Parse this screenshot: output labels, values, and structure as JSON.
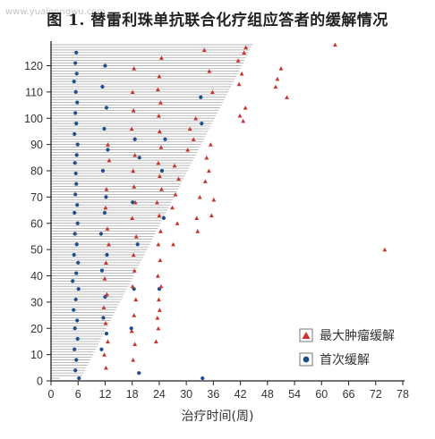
{
  "watermark": "www.yuaigongwu.com",
  "title": "图 1. 替雷利珠单抗联合化疗组应答者的缓解情况",
  "chart_data": {
    "type": "swimmer",
    "title": "图 1. 替雷利珠单抗联合化疗组应答者的缓解情况",
    "xlabel": "治疗时间(周)",
    "ylabel": "",
    "xlim": [
      0,
      78
    ],
    "ylim": [
      0,
      128
    ],
    "xticks": [
      0,
      6,
      12,
      18,
      24,
      30,
      36,
      42,
      48,
      54,
      60,
      66,
      72,
      78
    ],
    "yticks": [
      0,
      10,
      20,
      30,
      40,
      50,
      60,
      70,
      80,
      90,
      100,
      110,
      120
    ],
    "bar_color": "#b3b3b3",
    "legend": [
      {
        "name": "最大肿瘤缓解",
        "marker": "triangle",
        "color": "#c8332b"
      },
      {
        "name": "首次缓解",
        "marker": "circle",
        "color": "#1b4f8c"
      }
    ],
    "legend_position": "bottom-right",
    "durations": [
      2,
      6.9,
      7.2,
      7.5,
      7.8,
      8.1,
      8.4,
      8.7,
      9.0,
      9.3,
      9.6,
      9.9,
      10.2,
      10.5,
      10.8,
      11.1,
      11.4,
      11.7,
      12.0,
      12.3,
      12.6,
      12.9,
      13.2,
      13.5,
      13.8,
      14.1,
      14.4,
      14.7,
      15.0,
      15.3,
      15.6,
      15.9,
      16.2,
      16.5,
      16.8,
      17.1,
      17.4,
      17.7,
      18.0,
      18.3,
      18.6,
      18.9,
      19.2,
      19.5,
      19.8,
      20.1,
      20.4,
      20.7,
      21.0,
      21.3,
      21.6,
      21.9,
      22.2,
      22.5,
      22.8,
      23.1,
      23.4,
      23.7,
      24.0,
      24.3,
      24.6,
      24.9,
      25.2,
      25.5,
      25.8,
      26.1,
      26.4,
      26.7,
      27.0,
      27.3,
      27.6,
      27.9,
      28.2,
      28.5,
      28.8,
      29.1,
      29.4,
      29.7,
      30.0,
      30.3,
      30.6,
      30.9,
      31.2,
      31.5,
      31.8,
      32.1,
      32.4,
      32.7,
      33.0,
      33.3,
      33.6,
      33.9,
      34.2,
      34.5,
      34.8,
      35.1,
      35.4,
      35.7,
      36.0,
      36.3,
      36.6,
      36.9,
      37.2,
      37.5,
      37.8,
      38.1,
      38.4,
      38.7,
      39.0,
      39.3,
      39.6,
      39.9,
      40.2,
      40.5,
      40.8,
      41.1,
      41.4,
      41.7,
      42.0,
      42.3,
      42.6,
      42.9,
      43.2,
      43.5,
      43.8,
      44.1,
      44.4,
      44.7
    ],
    "first_response": [
      [
        6.2,
        1
      ],
      [
        19.5,
        3
      ],
      [
        33.6,
        1
      ],
      [
        5.4,
        4
      ],
      [
        5.6,
        8
      ],
      [
        5.2,
        12
      ],
      [
        5.9,
        16
      ],
      [
        5.3,
        20
      ],
      [
        5.8,
        23
      ],
      [
        5.0,
        27
      ],
      [
        5.5,
        31
      ],
      [
        6.1,
        35
      ],
      [
        4.8,
        38
      ],
      [
        5.6,
        41
      ],
      [
        6.0,
        45
      ],
      [
        5.1,
        48
      ],
      [
        5.7,
        52
      ],
      [
        5.3,
        56
      ],
      [
        5.9,
        60
      ],
      [
        5.2,
        64
      ],
      [
        5.8,
        67
      ],
      [
        5.4,
        71
      ],
      [
        5.6,
        75
      ],
      [
        5.5,
        79
      ],
      [
        5.3,
        83
      ],
      [
        5.7,
        86
      ],
      [
        5.9,
        90
      ],
      [
        5.2,
        94
      ],
      [
        5.6,
        98
      ],
      [
        5.4,
        102
      ],
      [
        5.8,
        106
      ],
      [
        5.5,
        110
      ],
      [
        5.1,
        114
      ],
      [
        5.7,
        117
      ],
      [
        5.4,
        121
      ],
      [
        5.6,
        125
      ],
      [
        11.2,
        12
      ],
      [
        12.3,
        18
      ],
      [
        11.6,
        24
      ],
      [
        12.0,
        32
      ],
      [
        11.3,
        42
      ],
      [
        12.4,
        48
      ],
      [
        11.1,
        56
      ],
      [
        11.9,
        64
      ],
      [
        12.2,
        70
      ],
      [
        11.5,
        80
      ],
      [
        12.6,
        88
      ],
      [
        11.8,
        96
      ],
      [
        12.3,
        104
      ],
      [
        11.4,
        112
      ],
      [
        12.0,
        120
      ],
      [
        17.8,
        20
      ],
      [
        18.4,
        35
      ],
      [
        19.2,
        52
      ],
      [
        18.1,
        68
      ],
      [
        19.6,
        85
      ],
      [
        18.6,
        92
      ],
      [
        24.0,
        35
      ],
      [
        25.0,
        62
      ],
      [
        24.6,
        80
      ],
      [
        25.3,
        92
      ],
      [
        33.4,
        98
      ],
      [
        33.2,
        108
      ]
    ],
    "max_response": [
      [
        12.2,
        5
      ],
      [
        11.8,
        10
      ],
      [
        12.6,
        15
      ],
      [
        12.1,
        22
      ],
      [
        11.7,
        28
      ],
      [
        12.4,
        33
      ],
      [
        11.9,
        39
      ],
      [
        12.2,
        45
      ],
      [
        12.8,
        52
      ],
      [
        12.5,
        58
      ],
      [
        12.1,
        66
      ],
      [
        12.3,
        73
      ],
      [
        12.9,
        84
      ],
      [
        12.6,
        90
      ],
      [
        18.2,
        8
      ],
      [
        18.6,
        14
      ],
      [
        17.9,
        19
      ],
      [
        18.4,
        25
      ],
      [
        18.8,
        31
      ],
      [
        18.1,
        36
      ],
      [
        18.5,
        42
      ],
      [
        18.3,
        48
      ],
      [
        18.9,
        55
      ],
      [
        18.0,
        62
      ],
      [
        18.7,
        68
      ],
      [
        18.4,
        74
      ],
      [
        18.2,
        80
      ],
      [
        18.6,
        86
      ],
      [
        17.9,
        96
      ],
      [
        18.3,
        103
      ],
      [
        18.1,
        110
      ],
      [
        18.4,
        119
      ],
      [
        23.3,
        15
      ],
      [
        23.8,
        20
      ],
      [
        23.6,
        24
      ],
      [
        24.1,
        27
      ],
      [
        23.9,
        31
      ],
      [
        24.4,
        36
      ],
      [
        23.7,
        40
      ],
      [
        24.2,
        46
      ],
      [
        23.8,
        52
      ],
      [
        24.3,
        57
      ],
      [
        24.0,
        63
      ],
      [
        23.5,
        68
      ],
      [
        24.5,
        73
      ],
      [
        24.1,
        78
      ],
      [
        23.8,
        83
      ],
      [
        24.4,
        89
      ],
      [
        24.1,
        95
      ],
      [
        23.9,
        101
      ],
      [
        24.3,
        106
      ],
      [
        23.7,
        111
      ],
      [
        24.0,
        116
      ],
      [
        24.5,
        123
      ],
      [
        27.1,
        52
      ],
      [
        28.0,
        60
      ],
      [
        26.9,
        66
      ],
      [
        27.6,
        71
      ],
      [
        28.3,
        77
      ],
      [
        27.4,
        82
      ],
      [
        30.3,
        88
      ],
      [
        31.6,
        92
      ],
      [
        30.8,
        96
      ],
      [
        32.1,
        100
      ],
      [
        32.5,
        57
      ],
      [
        32.3,
        62
      ],
      [
        33.0,
        70
      ],
      [
        34.2,
        76
      ],
      [
        35.0,
        80
      ],
      [
        34.5,
        85
      ],
      [
        35.4,
        90
      ],
      [
        35.8,
        110
      ],
      [
        35.1,
        118
      ],
      [
        34.0,
        126
      ],
      [
        35.6,
        63
      ],
      [
        36.1,
        69
      ],
      [
        41.9,
        101
      ],
      [
        42.6,
        99
      ],
      [
        43.1,
        104
      ],
      [
        41.7,
        113
      ],
      [
        42.3,
        117
      ],
      [
        41.5,
        122
      ],
      [
        42.8,
        125
      ],
      [
        43.2,
        127
      ],
      [
        50.2,
        115
      ],
      [
        51.0,
        119
      ],
      [
        49.8,
        112
      ],
      [
        52.3,
        108
      ],
      [
        63.0,
        128
      ],
      [
        74.0,
        50
      ]
    ]
  }
}
